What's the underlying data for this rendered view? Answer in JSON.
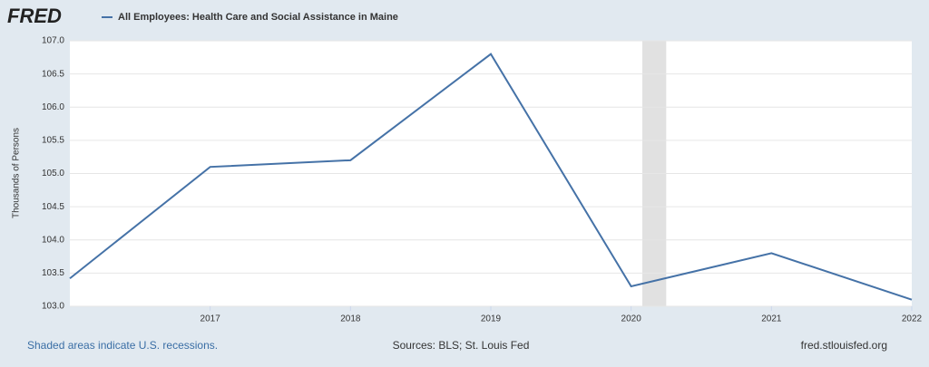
{
  "logo": "FRED",
  "chart_data": {
    "type": "line",
    "ylabel": "Thousands of Persons",
    "x": [
      2016,
      2017,
      2018,
      2019,
      2020,
      2021,
      2022
    ],
    "series": [
      {
        "name": "All Employees: Health Care and Social Assistance in Maine",
        "color": "#4572a7",
        "values": [
          103.42,
          105.1,
          105.2,
          106.8,
          103.3,
          103.8,
          103.1
        ]
      }
    ],
    "xlim": [
      2016,
      2022
    ],
    "xticks": [
      2017,
      2018,
      2019,
      2020,
      2021,
      2022
    ],
    "ylim": [
      103,
      107
    ],
    "yticks": [
      {
        "value": 103,
        "label": "103.0"
      },
      {
        "value": 103.5,
        "label": "103.5"
      },
      {
        "value": 104,
        "label": "104.0"
      },
      {
        "value": 104.5,
        "label": "104.5"
      },
      {
        "value": 105,
        "label": "105.0"
      },
      {
        "value": 105.5,
        "label": "105.5"
      },
      {
        "value": 106,
        "label": "106.0"
      },
      {
        "value": 106.5,
        "label": "106.5"
      },
      {
        "value": 107,
        "label": "107.0"
      }
    ],
    "recessions": [
      {
        "start": 2020.08,
        "end": 2020.25
      }
    ],
    "recession_color": "#e1e1e1",
    "grid": true
  },
  "footer": {
    "note": "Shaded areas indicate U.S. recessions.",
    "source": "Sources: BLS; St. Louis Fed",
    "url": "fred.stlouisfed.org"
  }
}
